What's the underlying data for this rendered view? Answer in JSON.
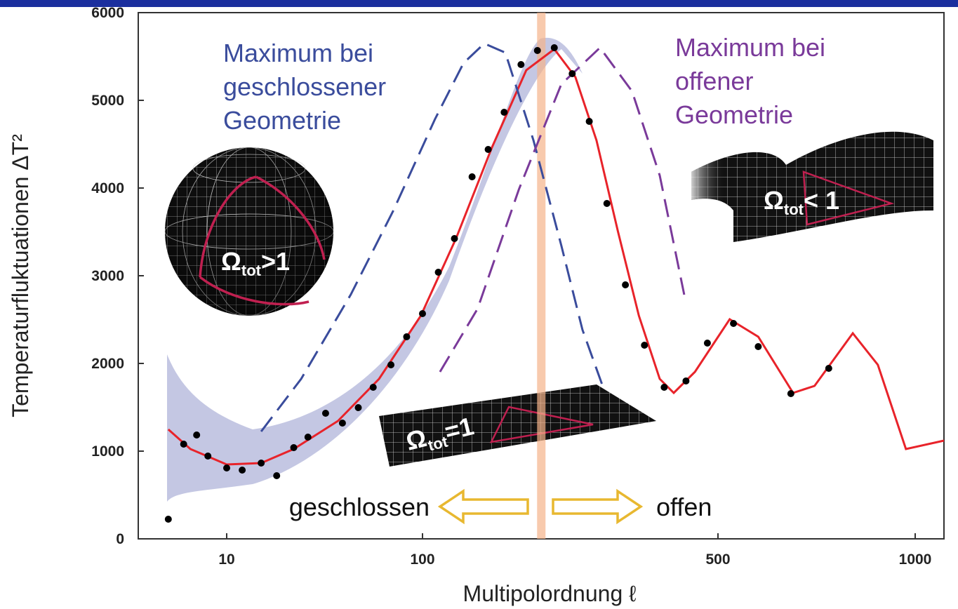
{
  "chart_data": {
    "type": "scatter",
    "xlabel": "Multipolordnung ℓ",
    "ylabel": "Temperaturfluktuationen ΔT²",
    "xscale": "log",
    "xlim": [
      3.5,
      1106
    ],
    "ylim": [
      0,
      6000
    ],
    "xticks": [
      10,
      100,
      500,
      1000
    ],
    "yticks": [
      0,
      1000,
      2000,
      3000,
      4000,
      5000,
      6000
    ],
    "highlight_x": 191,
    "series": [
      {
        "kind": "points",
        "color": "#000000",
        "x": [
          5,
          6,
          7,
          8,
          10,
          12,
          15,
          18,
          22,
          26,
          32,
          39,
          47,
          56,
          69,
          83,
          100,
          109,
          119,
          131,
          143,
          156,
          171,
          187,
          205,
          226,
          248,
          273,
          302,
          335,
          373,
          420,
          472,
          528,
          576,
          646,
          738
        ],
        "values": [
          224,
          1080,
          1184,
          944,
          808,
          784,
          864,
          720,
          1040,
          1160,
          1432,
          1320,
          1496,
          1728,
          1984,
          2304,
          2568,
          3040,
          3424,
          4128,
          4440,
          4864,
          5408,
          5568,
          5600,
          5304,
          4760,
          3824,
          2896,
          2208,
          1728,
          1800,
          2232,
          2456,
          2192,
          1656,
          1944
        ]
      },
      {
        "kind": "line",
        "color": "#e8232a",
        "x": [
          5,
          6.5,
          10,
          15,
          22,
          37,
          60,
          98,
          120,
          146,
          176,
          205,
          230,
          258,
          290,
          325,
          364,
          393,
          441,
          521,
          576,
          651,
          702,
          803,
          877,
          968,
          1106
        ],
        "values": [
          1248,
          1024,
          848,
          864,
          1024,
          1344,
          1824,
          2544,
          3424,
          4464,
          5344,
          5584,
          5264,
          4544,
          3504,
          2544,
          1824,
          1664,
          1904,
          2504,
          2304,
          1664,
          1744,
          2344,
          1984,
          1024,
          1120
        ]
      },
      {
        "kind": "dashed",
        "color": "#3a4c9c",
        "x": [
          15,
          24,
          43,
          71,
          107,
          125,
          140,
          157,
          183,
          213,
          239,
          266
        ],
        "values": [
          1224,
          1824,
          2784,
          3744,
          4784,
          5424,
          5648,
          5544,
          4544,
          3344,
          2384,
          1760
        ]
      },
      {
        "kind": "dashed",
        "color": "#7a3a9a",
        "x": [
          110,
          135,
          169,
          213,
          263,
          313,
          364,
          416
        ],
        "values": [
          1904,
          2624,
          3984,
          5184,
          5600,
          5104,
          4144,
          2784
        ]
      }
    ],
    "annotations": {
      "closed_max": [
        "Maximum bei",
        "geschlossener",
        "Geometrie"
      ],
      "open_max": [
        "Maximum bei",
        "offener",
        "Geometrie"
      ],
      "closed": "geschlossen",
      "open": "offen"
    },
    "geometry_labels": [
      {
        "symbol": "Ω",
        "sub": "tot",
        "rel": ">1"
      },
      {
        "symbol": "Ω",
        "sub": "tot",
        "rel": "=1"
      },
      {
        "symbol": "Ω",
        "sub": "tot",
        "rel": "< 1"
      }
    ]
  }
}
